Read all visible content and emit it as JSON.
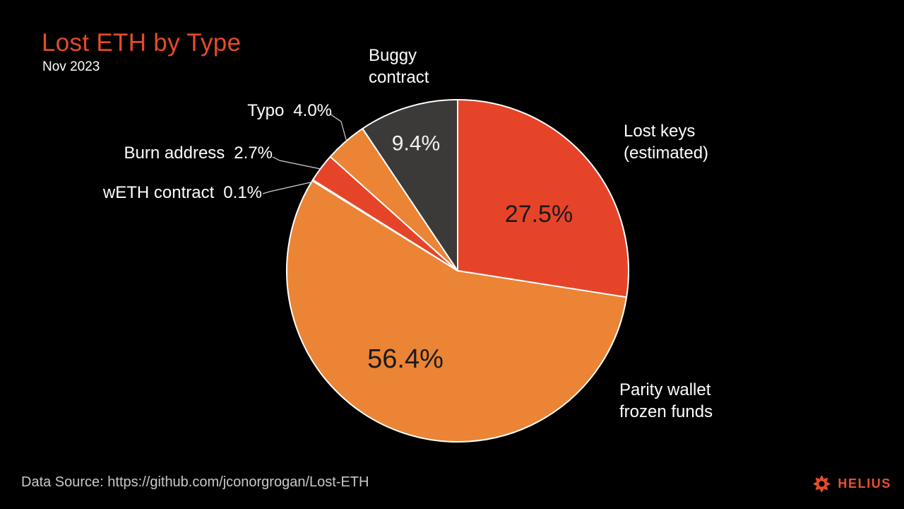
{
  "header": {
    "title": "Lost ETH by Type",
    "subtitle": "Nov 2023"
  },
  "chart_data": {
    "type": "pie",
    "title": "Lost ETH by Type",
    "subtitle": "Nov 2023",
    "unit": "%",
    "start_angle_deg": 0,
    "direction": "clockwise",
    "slice_border_color": "#ffffff",
    "slices": [
      {
        "label": "Lost keys (estimated)",
        "value": 27.5,
        "display": "27.5%",
        "color": "#e64429"
      },
      {
        "label": "Parity wallet frozen funds",
        "value": 56.4,
        "display": "56.4%",
        "color": "#eb8434"
      },
      {
        "label": "wETH contract",
        "value": 0.1,
        "display": "0.1%",
        "color": "#3c3939"
      },
      {
        "label": "Burn address",
        "value": 2.7,
        "display": "2.7%",
        "color": "#e64429"
      },
      {
        "label": "Typo",
        "value": 4.0,
        "display": "4.0%",
        "color": "#eb8434"
      },
      {
        "label": "Buggy contract",
        "value": 9.4,
        "display": "9.4%",
        "color": "#3c3939"
      }
    ]
  },
  "callouts": {
    "lost_keys": {
      "line1": "Lost keys",
      "line2": "(estimated)"
    },
    "parity": {
      "line1": "Parity wallet",
      "line2": "frozen funds"
    },
    "buggy": {
      "line1": "Buggy",
      "line2": "contract"
    }
  },
  "footer": {
    "source": "Data Source: https://github.com/jconorgrogan/Lost-ETH",
    "brand": "HELIUS"
  },
  "colors": {
    "background": "#000000",
    "title": "#e44b29",
    "brand": "#e8512e",
    "label_text": "#ffffff",
    "muted_text": "#c9c9c9",
    "leader_line": "#cfcfcf"
  }
}
